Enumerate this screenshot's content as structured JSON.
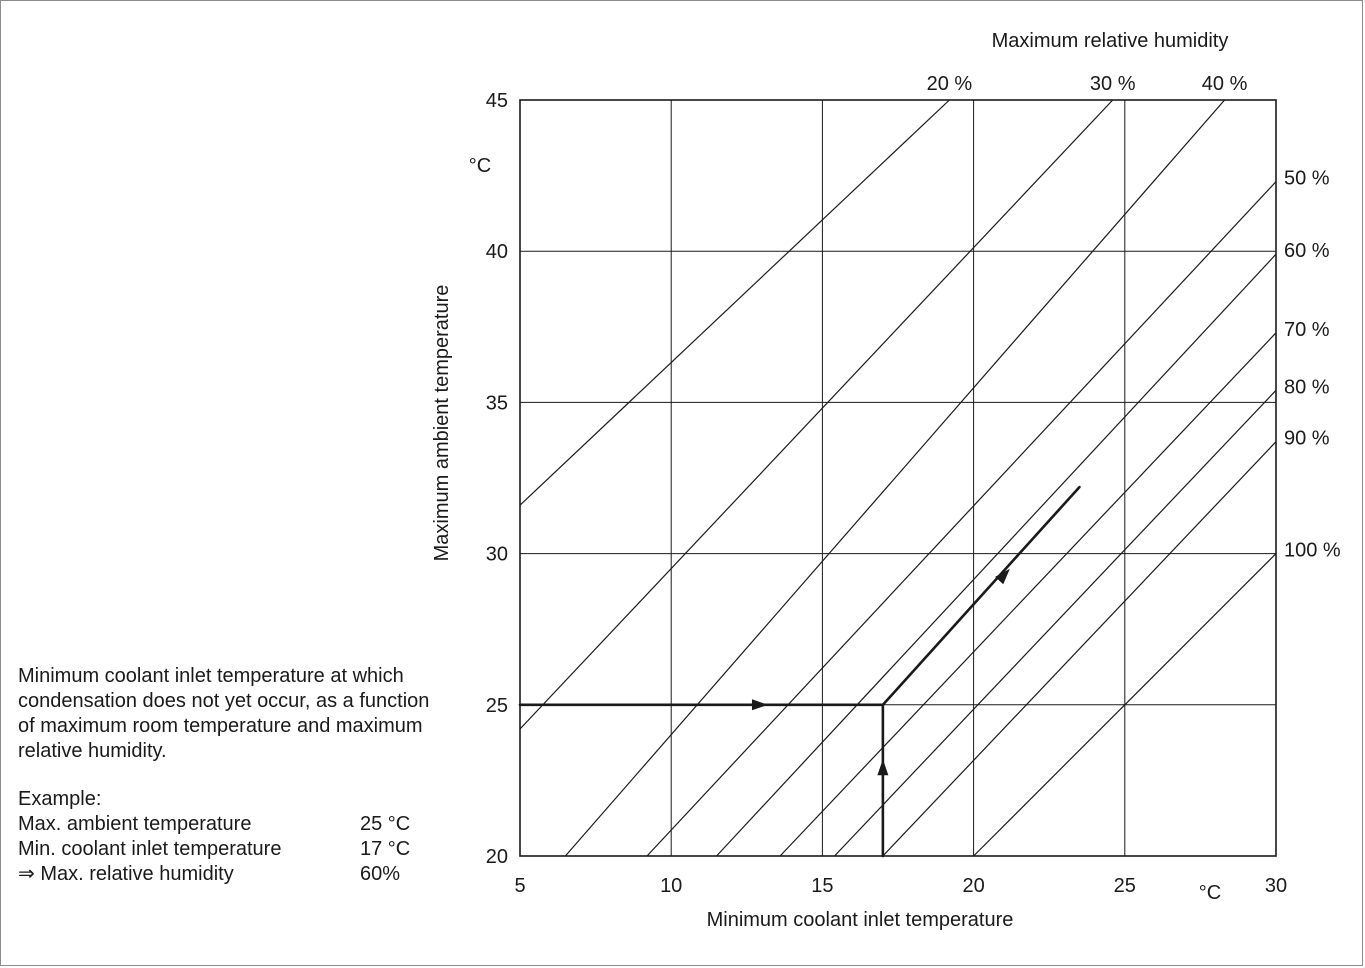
{
  "chart_data": {
    "type": "line",
    "title": "",
    "xlabel": "Minimum coolant inlet temperature",
    "ylabel": "Maximum ambient temperature",
    "x_unit": "°C",
    "y_unit": "°C",
    "xlim": [
      5,
      30
    ],
    "ylim": [
      20,
      45
    ],
    "xticks": [
      5,
      10,
      15,
      20,
      25,
      30
    ],
    "yticks": [
      20,
      25,
      30,
      35,
      40,
      45
    ],
    "grid": true,
    "humidity_axis_title": "Maximum relative humidity",
    "series": [
      {
        "name": "20 %",
        "label": "20 %",
        "points": [
          [
            5,
            31.6
          ],
          [
            19.2,
            45
          ]
        ]
      },
      {
        "name": "30 %",
        "label": "30 %",
        "points": [
          [
            5,
            24.2
          ],
          [
            24.6,
            45
          ]
        ]
      },
      {
        "name": "40 %",
        "label": "40 %",
        "points": [
          [
            6.5,
            20
          ],
          [
            28.3,
            45
          ]
        ]
      },
      {
        "name": "50 %",
        "label": "50 %",
        "points": [
          [
            9.2,
            20
          ],
          [
            30,
            42.3
          ]
        ]
      },
      {
        "name": "60 %",
        "label": "60 %",
        "points": [
          [
            11.5,
            20
          ],
          [
            30,
            39.9
          ]
        ]
      },
      {
        "name": "70 %",
        "label": "70 %",
        "points": [
          [
            13.6,
            20
          ],
          [
            30,
            37.3
          ]
        ]
      },
      {
        "name": "80 %",
        "label": "80 %",
        "points": [
          [
            15.4,
            20
          ],
          [
            30,
            35.4
          ]
        ]
      },
      {
        "name": "90 %",
        "label": "90 %",
        "points": [
          [
            17,
            20
          ],
          [
            30,
            33.7
          ]
        ]
      },
      {
        "name": "100 %",
        "label": "100 %",
        "points": [
          [
            20,
            20
          ],
          [
            30,
            30
          ]
        ]
      }
    ],
    "example_path": [
      [
        17,
        20
      ],
      [
        17,
        25
      ],
      [
        5,
        25
      ],
      [
        17,
        25
      ],
      [
        23.5,
        32.2
      ]
    ],
    "example": {
      "ambient": 25,
      "coolant": 17,
      "humidity": 60
    }
  },
  "side_text": {
    "description": "Minimum coolant inlet temperature at which condensation does not yet occur, as a function of maximum room temperature and maximum relative humidity.",
    "example_heading": "Example:",
    "rows": [
      {
        "label": "Max. ambient temperature",
        "value": "25 °C"
      },
      {
        "label": "Min. coolant inlet temperature",
        "value": "17 °C"
      },
      {
        "label": "⇒ Max. relative humidity",
        "value": "60%"
      }
    ]
  }
}
